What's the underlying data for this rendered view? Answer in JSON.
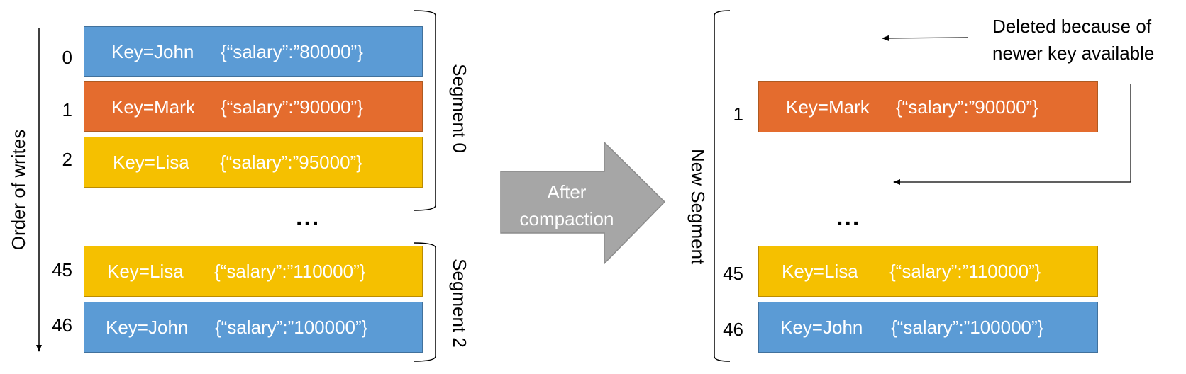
{
  "left": {
    "axis_label": "Order of writes",
    "segment0_label": "Segment 0",
    "segment2_label": "Segment 2",
    "ellipsis": "...",
    "records": [
      {
        "index": "0",
        "key": "Key=John",
        "value": "{“salary”:”80000”}",
        "color": "#5b9bd5"
      },
      {
        "index": "1",
        "key": "Key=Mark",
        "value": "{“salary”:”90000”}",
        "color": "#e46c2e"
      },
      {
        "index": "2",
        "key": "Key=Lisa",
        "value": "{“salary”:”95000”}",
        "color": "#f5c000"
      },
      {
        "index": "45",
        "key": "Key=Lisa",
        "value": "{“salary”:”110000”}",
        "color": "#f5c000"
      },
      {
        "index": "46",
        "key": "Key=John",
        "value": "{“salary”:”100000”}",
        "color": "#5b9bd5"
      }
    ]
  },
  "center_arrow": {
    "line1": "After",
    "line2": "compaction",
    "color": "#a6a6a6"
  },
  "right": {
    "segment_label": "New Segment",
    "ellipsis": "...",
    "note_line1": "Deleted because of",
    "note_line2": "newer key available",
    "records": [
      {
        "index": "1",
        "key": "Key=Mark",
        "value": "{“salary”:”90000”}",
        "color": "#e46c2e"
      },
      {
        "index": "45",
        "key": "Key=Lisa",
        "value": "{“salary”:”110000”}",
        "color": "#f5c000"
      },
      {
        "index": "46",
        "key": "Key=John",
        "value": "{“salary”:”100000”}",
        "color": "#5b9bd5"
      }
    ]
  }
}
